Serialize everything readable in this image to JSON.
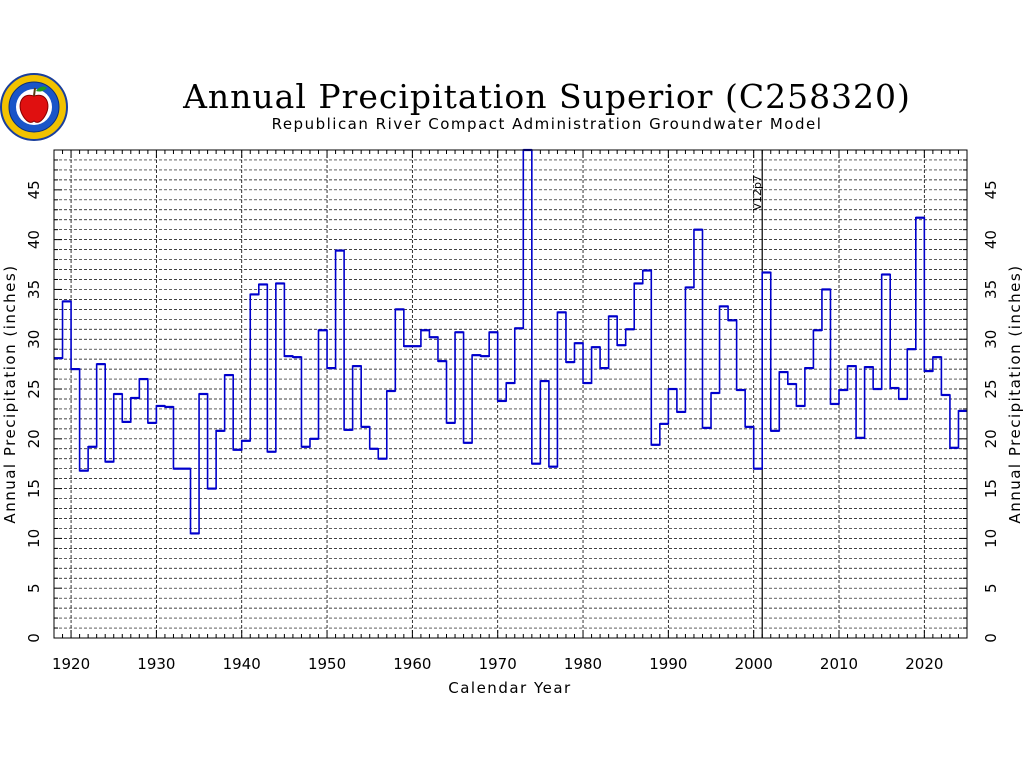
{
  "chart_data": {
    "type": "line",
    "step": true,
    "title": "Annual Precipitation Superior (C258320)",
    "subtitle": "Republican River Compact Administration Groundwater Model",
    "xlabel": "Calendar Year",
    "ylabel": "Annual Precipitation (inches)",
    "xlim": [
      1918,
      2025
    ],
    "ylim": [
      0,
      49
    ],
    "x_ticks": [
      1920,
      1930,
      1940,
      1950,
      1960,
      1970,
      1980,
      1990,
      2000,
      2010,
      2020
    ],
    "y_ticks": [
      0,
      5,
      10,
      15,
      20,
      25,
      30,
      35,
      40,
      45
    ],
    "grid": true,
    "marker": {
      "x": 2001,
      "label": "V12p7"
    },
    "colors": {
      "series": "#0000cc",
      "grid": "#000000"
    },
    "x": [
      1918,
      1919,
      1920,
      1921,
      1922,
      1923,
      1924,
      1925,
      1926,
      1927,
      1928,
      1929,
      1930,
      1931,
      1932,
      1933,
      1934,
      1935,
      1936,
      1937,
      1938,
      1939,
      1940,
      1941,
      1942,
      1943,
      1944,
      1945,
      1946,
      1947,
      1948,
      1949,
      1950,
      1951,
      1952,
      1953,
      1954,
      1955,
      1956,
      1957,
      1958,
      1959,
      1960,
      1961,
      1962,
      1963,
      1964,
      1965,
      1966,
      1967,
      1968,
      1969,
      1970,
      1971,
      1972,
      1973,
      1974,
      1975,
      1976,
      1977,
      1978,
      1979,
      1980,
      1981,
      1982,
      1983,
      1984,
      1985,
      1986,
      1987,
      1988,
      1989,
      1990,
      1991,
      1992,
      1993,
      1994,
      1995,
      1996,
      1997,
      1998,
      1999,
      2000,
      2001,
      2002,
      2003,
      2004,
      2005,
      2006,
      2007,
      2008,
      2009,
      2010,
      2011,
      2012,
      2013,
      2014,
      2015,
      2016,
      2017,
      2018,
      2019,
      2020,
      2021,
      2022,
      2023,
      2024
    ],
    "values": [
      28.1,
      33.8,
      27.0,
      16.8,
      19.2,
      27.5,
      17.7,
      24.5,
      21.7,
      24.1,
      26.0,
      21.6,
      23.3,
      23.2,
      17.0,
      17.0,
      10.5,
      24.5,
      15.0,
      20.8,
      26.4,
      18.9,
      19.8,
      34.5,
      35.5,
      18.7,
      35.6,
      28.3,
      28.2,
      19.2,
      20.0,
      30.9,
      27.1,
      38.9,
      20.9,
      27.3,
      21.2,
      19.0,
      18.0,
      24.8,
      33.0,
      29.3,
      29.3,
      30.9,
      30.2,
      27.8,
      21.6,
      30.7,
      19.6,
      28.4,
      28.3,
      30.7,
      23.8,
      25.6,
      31.1,
      49.0,
      17.5,
      25.8,
      17.2,
      32.7,
      27.7,
      29.6,
      25.6,
      29.2,
      27.1,
      32.3,
      29.4,
      31.0,
      35.6,
      36.9,
      19.4,
      21.5,
      25.0,
      22.7,
      35.2,
      41.0,
      21.1,
      24.6,
      33.3,
      31.9,
      24.9,
      21.2,
      17.0,
      36.7,
      20.8,
      26.7,
      25.5,
      23.3,
      27.1,
      30.9,
      35.0,
      23.5,
      24.9,
      27.3,
      20.1,
      27.2,
      25.0,
      36.5,
      25.1,
      24.0,
      29.0,
      42.2,
      26.8,
      28.2,
      24.4,
      19.1,
      22.8
    ]
  },
  "logo": {
    "name": "rrca-apple-logo"
  }
}
